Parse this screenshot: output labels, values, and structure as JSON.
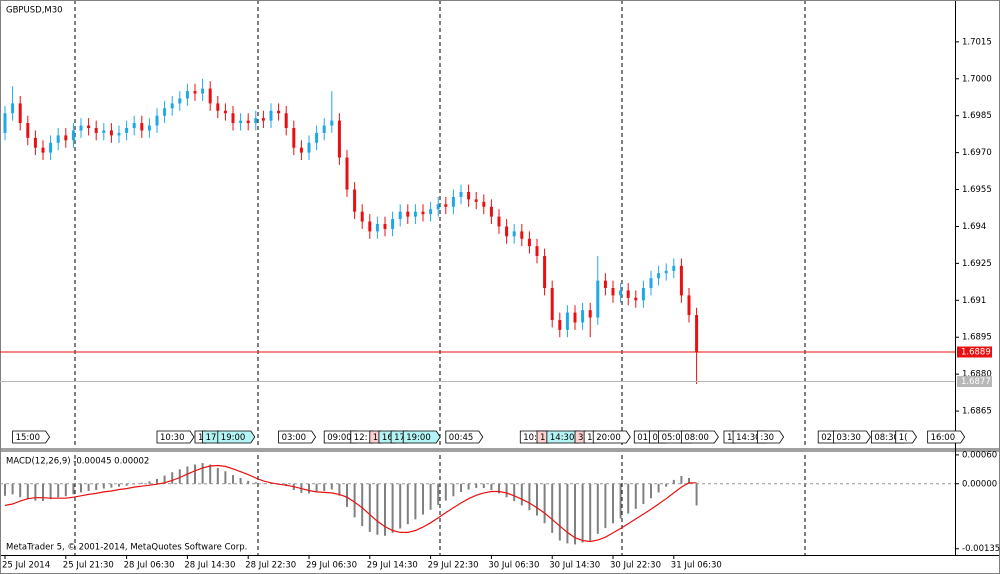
{
  "chart_data": [
    {
      "type": "candlestick",
      "title": "GBPUSD,M30",
      "categories": [
        "25 Jul 2014",
        null,
        null,
        null,
        null,
        null,
        null,
        null,
        "25 Jul 21:30",
        null,
        null,
        null,
        null,
        null,
        null,
        null,
        "28 Jul 06:30",
        null,
        null,
        null,
        null,
        null,
        null,
        null,
        "28 Jul 14:30",
        null,
        null,
        null,
        null,
        null,
        null,
        null,
        "28 Jul 22:30",
        null,
        null,
        null,
        null,
        null,
        null,
        null,
        "29 Jul 06:30",
        null,
        null,
        null,
        null,
        null,
        null,
        null,
        "29 Jul 14:30",
        null,
        null,
        null,
        null,
        null,
        null,
        null,
        "29 Jul 22:30",
        null,
        null,
        null,
        null,
        null,
        null,
        null,
        "30 Jul 06:30",
        null,
        null,
        null,
        null,
        null,
        null,
        null,
        "30 Jul 14:30",
        null,
        null,
        null,
        null,
        null,
        null,
        null,
        "30 Jul 22:30",
        null,
        null,
        null,
        null,
        null,
        null,
        null,
        "31 Jul 06:30",
        null,
        null,
        null
      ],
      "open": [
        1.6978,
        1.6986,
        1.699,
        1.6982,
        1.6976,
        1.6972,
        1.697,
        1.6974,
        1.6977,
        1.6975,
        1.6979,
        1.6981,
        1.698,
        1.6978,
        1.6979,
        1.6977,
        1.6978,
        1.698,
        1.6982,
        1.6979,
        1.6981,
        1.6985,
        1.6988,
        1.699,
        1.6992,
        1.6995,
        1.6994,
        1.6996,
        1.699,
        1.6987,
        1.6986,
        1.6982,
        1.6983,
        1.6982,
        1.6984,
        1.6983,
        1.6987,
        1.6986,
        1.698,
        1.6972,
        1.697,
        1.6974,
        1.6978,
        1.6981,
        1.6983,
        1.6968,
        1.6955,
        1.6946,
        1.6942,
        1.6938,
        1.6941,
        1.6939,
        1.6943,
        1.6946,
        1.6944,
        1.6946,
        1.6945,
        1.6947,
        1.6949,
        1.6948,
        1.6952,
        1.6954,
        1.6951,
        1.695,
        1.6948,
        1.6944,
        1.694,
        1.6936,
        1.6938,
        1.6935,
        1.6932,
        1.6928,
        1.6915,
        1.6902,
        1.6898,
        1.6905,
        1.6901,
        1.6906,
        1.6903,
        1.6918,
        1.6915,
        1.6912,
        1.6914,
        1.6911,
        1.691,
        1.6915,
        1.6919,
        1.6921,
        1.6922,
        1.6924,
        1.6912,
        1.6904
      ],
      "high": [
        1.6989,
        1.6997,
        1.6993,
        1.6985,
        1.6979,
        1.6975,
        1.6977,
        1.698,
        1.698,
        1.6982,
        1.6984,
        1.6984,
        1.6983,
        1.6982,
        1.6982,
        1.6981,
        1.6983,
        1.6985,
        1.6985,
        1.6984,
        1.6988,
        1.6991,
        1.6993,
        1.6995,
        1.6998,
        1.6998,
        1.7,
        1.6999,
        1.6993,
        1.699,
        1.6989,
        1.6986,
        1.6986,
        1.6987,
        1.6987,
        1.699,
        1.699,
        1.6989,
        1.6983,
        1.6975,
        1.6977,
        1.6981,
        1.6984,
        1.6995,
        1.6986,
        1.6971,
        1.6958,
        1.6949,
        1.6945,
        1.6944,
        1.6944,
        1.6946,
        1.6949,
        1.6949,
        1.6949,
        1.6949,
        1.695,
        1.6952,
        1.6952,
        1.6955,
        1.6957,
        1.6957,
        1.6954,
        1.6953,
        1.6951,
        1.6947,
        1.6943,
        1.6941,
        1.6941,
        1.6938,
        1.6935,
        1.6931,
        1.6918,
        1.6905,
        1.6908,
        1.6908,
        1.6909,
        1.6909,
        1.6928,
        1.6921,
        1.6918,
        1.6917,
        1.6917,
        1.6914,
        1.6918,
        1.6922,
        1.6924,
        1.6925,
        1.6927,
        1.6927,
        1.6915,
        1.6907
      ],
      "low": [
        1.6975,
        1.6983,
        1.6979,
        1.6973,
        1.6969,
        1.6967,
        1.6967,
        1.6971,
        1.6972,
        1.6972,
        1.6976,
        1.6977,
        1.6975,
        1.6975,
        1.6974,
        1.6974,
        1.6975,
        1.6977,
        1.6976,
        1.6976,
        1.6978,
        1.6982,
        1.6985,
        1.6987,
        1.6989,
        1.6991,
        1.6991,
        1.6987,
        1.6984,
        1.6983,
        1.6979,
        1.6979,
        1.6979,
        1.6979,
        1.698,
        1.698,
        1.6983,
        1.6977,
        1.6969,
        1.6967,
        1.6967,
        1.6971,
        1.6975,
        1.6978,
        1.6965,
        1.6952,
        1.6943,
        1.6939,
        1.6935,
        1.6935,
        1.6936,
        1.6936,
        1.694,
        1.6941,
        1.6941,
        1.6942,
        1.6942,
        1.6944,
        1.6945,
        1.6945,
        1.6949,
        1.6948,
        1.6947,
        1.6945,
        1.6941,
        1.6937,
        1.6933,
        1.6933,
        1.6932,
        1.6929,
        1.6925,
        1.6912,
        1.6899,
        1.6895,
        1.6895,
        1.6898,
        1.6898,
        1.6895,
        1.69,
        1.6912,
        1.6909,
        1.6909,
        1.6908,
        1.6907,
        1.6907,
        1.6912,
        1.6916,
        1.6918,
        1.6919,
        1.6909,
        1.6901,
        1.6876
      ],
      "close": [
        1.6986,
        1.699,
        1.6982,
        1.6976,
        1.6972,
        1.697,
        1.6974,
        1.6977,
        1.6975,
        1.6979,
        1.6981,
        1.698,
        1.6978,
        1.6979,
        1.6977,
        1.6978,
        1.698,
        1.6982,
        1.6979,
        1.6981,
        1.6985,
        1.6988,
        1.699,
        1.6992,
        1.6995,
        1.6994,
        1.6996,
        1.699,
        1.6987,
        1.6986,
        1.6982,
        1.6983,
        1.6982,
        1.6984,
        1.6983,
        1.6987,
        1.6986,
        1.698,
        1.6972,
        1.697,
        1.6974,
        1.6978,
        1.6981,
        1.6983,
        1.6968,
        1.6955,
        1.6946,
        1.6942,
        1.6938,
        1.6941,
        1.6939,
        1.6943,
        1.6946,
        1.6944,
        1.6946,
        1.6945,
        1.6947,
        1.6949,
        1.6948,
        1.6952,
        1.6954,
        1.6951,
        1.695,
        1.6948,
        1.6944,
        1.694,
        1.6936,
        1.6938,
        1.6935,
        1.6932,
        1.6928,
        1.6915,
        1.6902,
        1.6898,
        1.6905,
        1.6901,
        1.6906,
        1.6903,
        1.6918,
        1.6915,
        1.6912,
        1.6914,
        1.6911,
        1.691,
        1.6915,
        1.6919,
        1.6921,
        1.6922,
        1.6924,
        1.6912,
        1.6904,
        1.6889
      ],
      "up_color": "#1fa8e8",
      "down_color": "#e81010",
      "ylim": [
        1.685,
        1.7032
      ],
      "yticks": [
        1.7015,
        {
          "value": 1.7,
          "label": "1.7000"
        },
        1.6985,
        {
          "value": 1.697,
          "label": "1.6970"
        },
        1.6955,
        1.694,
        1.6925,
        1.691,
        1.6895,
        {
          "value": 1.688,
          "label": "1.6880"
        },
        1.6865
      ],
      "bid_line": {
        "value": 1.6889,
        "color": "#e81010"
      },
      "ask_line": {
        "value": 1.6877,
        "color": "#b8b8b8"
      },
      "events": [
        {
          "label": "15:00",
          "at": 1,
          "color": "#ffffff"
        },
        {
          "label": "10:30",
          "at": 20,
          "color": "#ffffff"
        },
        {
          "label": "1",
          "at": 25,
          "color": "#ffffff"
        },
        {
          "label": "17",
          "at": 26,
          "color": "#b4f4f4"
        },
        {
          "label": "19:00",
          "at": 28,
          "color": "#b4f4f4"
        },
        {
          "label": "03:00",
          "at": 36,
          "color": "#ffffff"
        },
        {
          "label": "09:00",
          "at": 42,
          "color": "#ffffff"
        },
        {
          "label": "12:",
          "at": 45.5,
          "color": "#ffffff"
        },
        {
          "label": "1",
          "at": 48,
          "color": "#ffd0d0"
        },
        {
          "label": "16",
          "at": 49.2,
          "color": "#b4f4f4"
        },
        {
          "label": "17",
          "at": 50.8,
          "color": "#b4f4f4"
        },
        {
          "label": "19:00",
          "at": 52.4,
          "color": "#b4f4f4"
        },
        {
          "label": "00:45",
          "at": 58,
          "color": "#ffffff"
        },
        {
          "label": "10:3",
          "at": 67.8,
          "color": "#ffffff"
        },
        {
          "label": "1",
          "at": 70,
          "color": "#ffd0d0"
        },
        {
          "label": "14:30",
          "at": 71.3,
          "color": "#b4f4f4"
        },
        {
          "label": "3",
          "at": 75,
          "color": "#ffd0d0"
        },
        {
          "label": "1",
          "at": 76.2,
          "color": "#ffffff"
        },
        {
          "label": "20:00",
          "at": 77.4,
          "color": "#ffffff"
        },
        {
          "label": "01:",
          "at": 82.8,
          "color": "#ffffff"
        },
        {
          "label": "03",
          "at": 84.8,
          "color": "#ffffff"
        },
        {
          "label": "05:00",
          "at": 86,
          "color": "#ffffff"
        },
        {
          "label": "08:00",
          "at": 89,
          "color": "#ffffff"
        },
        {
          "label": "1",
          "at": 94.6,
          "color": "#ffffff"
        },
        {
          "label": "14:30",
          "at": 95.8,
          "color": "#ffffff"
        },
        {
          "label": ":30",
          "at": 99,
          "color": "#ffffff"
        },
        {
          "label": "02",
          "at": 107,
          "color": "#ffffff"
        },
        {
          "label": "03:30",
          "at": 109,
          "color": "#ffffff"
        },
        {
          "label": "08:30",
          "at": 114,
          "color": "#ffffff"
        },
        {
          "label": "1(",
          "at": 117.2,
          "color": "#ffffff"
        },
        {
          "label": "16:00",
          "at": 121.4,
          "color": "#ffffff"
        }
      ]
    },
    {
      "type": "macd",
      "title": "MACD(12,26,9) -0.00045 0.00002",
      "histogram": {
        "color": "#808080",
        "values": [
          -0.00025,
          -0.00022,
          -0.00028,
          -0.00032,
          -0.00035,
          -0.00036,
          -0.00032,
          -0.00028,
          -0.00026,
          -0.00022,
          -0.00018,
          -0.00015,
          -0.00013,
          -0.0001,
          -8e-05,
          -6e-05,
          -4e-05,
          -1e-05,
          2e-05,
          5e-05,
          0.0001,
          0.00017,
          0.00024,
          0.0003,
          0.00036,
          0.0004,
          0.00043,
          0.0004,
          0.00033,
          0.00026,
          0.00018,
          0.00012,
          6e-05,
          3e-05,
          1e-05,
          2e-05,
          1e-05,
          -5e-05,
          -0.00013,
          -0.00019,
          -0.0002,
          -0.00018,
          -0.00015,
          -0.00012,
          -0.00025,
          -0.00048,
          -0.0007,
          -0.00088,
          -0.001,
          -0.00106,
          -0.00108,
          -0.00102,
          -0.00093,
          -0.00084,
          -0.00074,
          -0.00064,
          -0.00054,
          -0.00044,
          -0.00035,
          -0.00026,
          -0.00017,
          -0.00012,
          -9e-05,
          -9e-05,
          -0.00013,
          -0.0002,
          -0.00028,
          -0.00036,
          -0.00045,
          -0.00055,
          -0.00066,
          -0.00082,
          -0.00102,
          -0.00118,
          -0.00124,
          -0.00126,
          -0.00122,
          -0.00118,
          -0.00104,
          -0.00092,
          -0.00082,
          -0.00072,
          -0.00062,
          -0.00052,
          -0.00042,
          -0.0003,
          -0.00018,
          -6e-05,
          8e-05,
          0.00016,
          0.00012,
          -0.00045
        ]
      },
      "signal": {
        "color": "#e81010",
        "values": [
          -0.00045,
          -0.00042,
          -0.00036,
          -0.00031,
          -0.00029,
          -0.00029,
          -0.0003,
          -0.0003,
          -0.0003,
          -0.00028,
          -0.00025,
          -0.00022,
          -0.0002,
          -0.00017,
          -0.00015,
          -0.00012,
          -0.0001,
          -7e-05,
          -5e-05,
          -3e-05,
          -1e-05,
          2e-05,
          7e-05,
          0.00013,
          0.0002,
          0.00027,
          0.00033,
          0.00037,
          0.00038,
          0.00036,
          0.00031,
          0.00025,
          0.00019,
          0.00012,
          6e-05,
          2e-05,
          -1e-05,
          -3e-05,
          -6e-05,
          -0.0001,
          -0.00014,
          -0.00017,
          -0.00018,
          -0.00019,
          -0.00022,
          -0.00028,
          -0.00038,
          -0.0005,
          -0.00064,
          -0.00078,
          -0.00089,
          -0.00097,
          -0.00101,
          -0.00101,
          -0.00097,
          -0.0009,
          -0.00081,
          -0.00071,
          -0.0006,
          -0.0005,
          -0.0004,
          -0.00031,
          -0.00024,
          -0.00019,
          -0.00016,
          -0.00016,
          -0.00019,
          -0.00025,
          -0.00032,
          -0.0004,
          -0.0005,
          -0.00061,
          -0.00074,
          -0.00088,
          -0.00101,
          -0.00112,
          -0.00118,
          -0.0012,
          -0.00117,
          -0.00111,
          -0.00102,
          -0.00093,
          -0.00083,
          -0.00073,
          -0.00063,
          -0.00053,
          -0.00042,
          -0.00031,
          -0.00019,
          -7e-05,
          2e-05,
          2e-05
        ]
      },
      "ylim": [
        -0.00148,
        0.00066
      ],
      "yticks": [
        {
          "value": 0.0006,
          "label": "0.00060"
        },
        {
          "value": 0,
          "label": "0.00000"
        },
        {
          "value": -0.00135,
          "label": "-0.00135"
        }
      ]
    }
  ],
  "footer": "MetaTrader 5, © 2001-2014, MetaQuotes Software Corp."
}
